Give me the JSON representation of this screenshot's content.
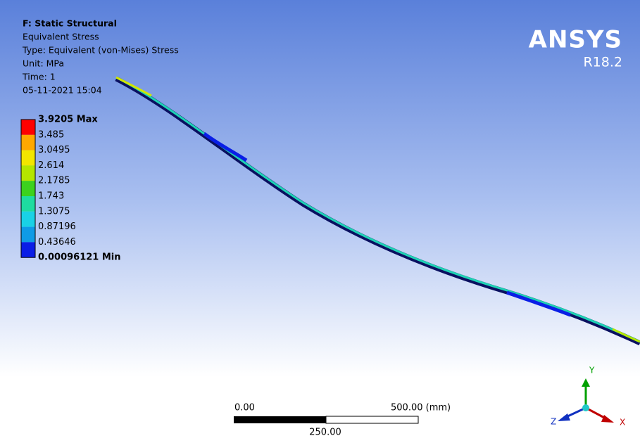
{
  "header": {
    "title": "F: Static Structural",
    "lines": [
      "Equivalent Stress",
      "Type: Equivalent (von-Mises) Stress",
      "Unit: MPa",
      "Time: 1",
      "05-11-2021 15:04"
    ]
  },
  "legend": {
    "labels": [
      "3.9205 Max",
      "3.485",
      "3.0495",
      "2.614",
      "2.1785",
      "1.743",
      "1.3075",
      "0.87196",
      "0.43646",
      "0.00096121 Min"
    ],
    "colors": [
      "#ff0000",
      "#ffa800",
      "#f2e600",
      "#b4e600",
      "#3cd21e",
      "#1edca0",
      "#19d2e6",
      "#0f9be6",
      "#0a1ee6"
    ]
  },
  "logo": {
    "name": "ANSYS",
    "version": "R18.2"
  },
  "scale_bar": {
    "start": "0.00",
    "middle": "250.00",
    "end": "500.00 (mm)"
  },
  "triad": {
    "x": "X",
    "y": "Y",
    "z": "Z"
  }
}
